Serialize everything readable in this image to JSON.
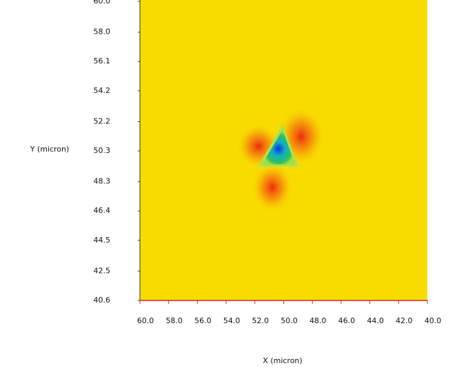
{
  "chart_data": {
    "type": "heatmap",
    "xlabel": "X (micron)",
    "ylabel": "Y (micron)",
    "xlim": [
      60,
      40
    ],
    "ylim": [
      40.6,
      60
    ],
    "xticks": [
      {
        "value": 60,
        "label": "60.0"
      },
      {
        "value": 58,
        "label": "58.0"
      },
      {
        "value": 56,
        "label": "56.0"
      },
      {
        "value": 54,
        "label": "54.0"
      },
      {
        "value": 52,
        "label": "52.0"
      },
      {
        "value": 50,
        "label": "50.0"
      },
      {
        "value": 48,
        "label": "48.0"
      },
      {
        "value": 46,
        "label": "46.0"
      },
      {
        "value": 44,
        "label": "44.0"
      },
      {
        "value": 42,
        "label": "42.0"
      },
      {
        "value": 40,
        "label": "40.0"
      }
    ],
    "yticks": [
      {
        "value": 60,
        "label": "60.0"
      },
      {
        "value": 58,
        "label": "58.0"
      },
      56.1,
      54.2,
      52.2,
      50.3,
      48.3,
      46.4,
      44.5,
      42.5,
      40.6
    ]
  }
}
